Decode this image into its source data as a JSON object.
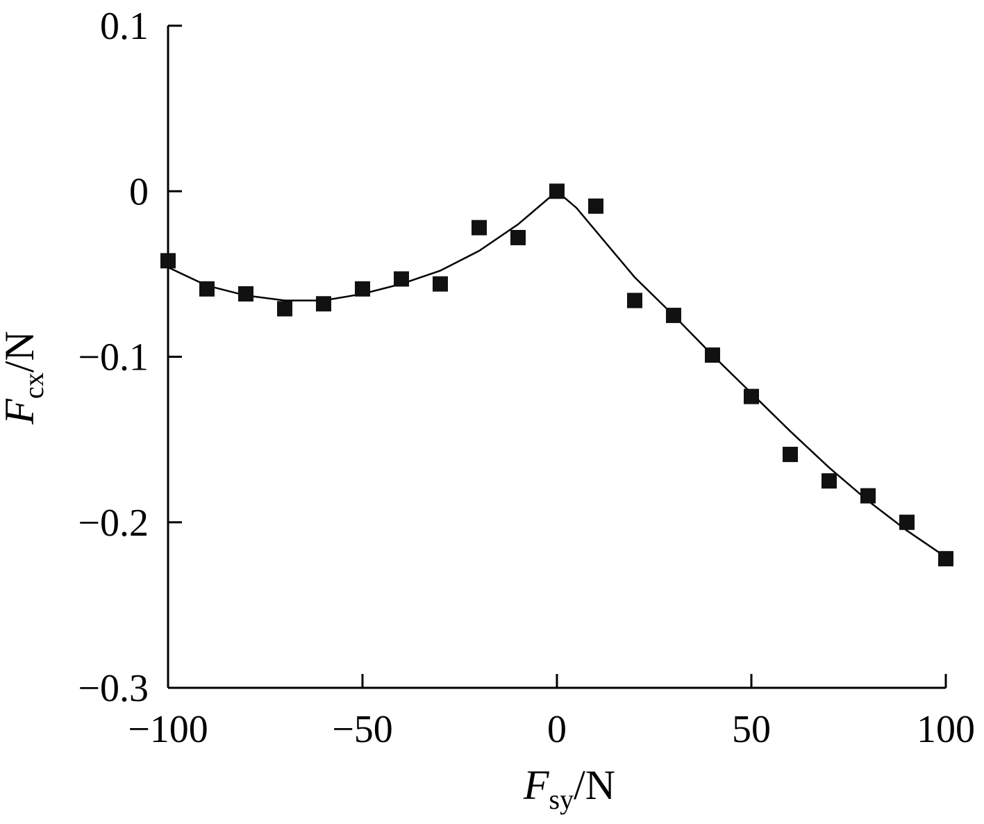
{
  "chart_data": {
    "type": "scatter",
    "title": "",
    "xlabel": {
      "main": "F",
      "sub": "sy",
      "unit": "/N"
    },
    "ylabel": {
      "main": "F",
      "sub": "cx",
      "unit": "/N"
    },
    "xlim": [
      -100,
      100
    ],
    "ylim": [
      -0.3,
      0.1
    ],
    "xticks": [
      -100,
      -50,
      0,
      50,
      100
    ],
    "xtick_labels": [
      "−100",
      "−50",
      "0",
      "50",
      "100"
    ],
    "yticks": [
      0.1,
      0,
      -0.1,
      -0.2,
      -0.3
    ],
    "ytick_labels": [
      "0.1",
      "0",
      "−0.1",
      "−0.2",
      "−0.3"
    ],
    "grid": false,
    "series": [
      {
        "kind": "markers",
        "marker": "square",
        "color": "#111111",
        "points": [
          [
            -100,
            -0.042
          ],
          [
            -90,
            -0.059
          ],
          [
            -80,
            -0.062
          ],
          [
            -70,
            -0.071
          ],
          [
            -60,
            -0.068
          ],
          [
            -50,
            -0.059
          ],
          [
            -40,
            -0.053
          ],
          [
            -30,
            -0.056
          ],
          [
            -20,
            -0.022
          ],
          [
            -10,
            -0.028
          ],
          [
            0,
            0.0
          ],
          [
            10,
            -0.009
          ],
          [
            20,
            -0.066
          ],
          [
            30,
            -0.075
          ],
          [
            40,
            -0.099
          ],
          [
            50,
            -0.124
          ],
          [
            60,
            -0.159
          ],
          [
            70,
            -0.175
          ],
          [
            80,
            -0.184
          ],
          [
            90,
            -0.2
          ],
          [
            100,
            -0.222
          ]
        ]
      },
      {
        "kind": "line",
        "color": "#000000",
        "points": [
          [
            -100,
            -0.046
          ],
          [
            -90,
            -0.057
          ],
          [
            -80,
            -0.063
          ],
          [
            -70,
            -0.066
          ],
          [
            -60,
            -0.066
          ],
          [
            -50,
            -0.062
          ],
          [
            -40,
            -0.056
          ],
          [
            -30,
            -0.048
          ],
          [
            -20,
            -0.036
          ],
          [
            -10,
            -0.02
          ],
          [
            0,
            0.0
          ],
          [
            5,
            -0.01
          ],
          [
            10,
            -0.024
          ],
          [
            15,
            -0.038
          ],
          [
            20,
            -0.052
          ],
          [
            30,
            -0.075
          ],
          [
            40,
            -0.099
          ],
          [
            50,
            -0.122
          ],
          [
            60,
            -0.145
          ],
          [
            70,
            -0.167
          ],
          [
            80,
            -0.187
          ],
          [
            90,
            -0.205
          ],
          [
            100,
            -0.221
          ]
        ]
      }
    ]
  }
}
